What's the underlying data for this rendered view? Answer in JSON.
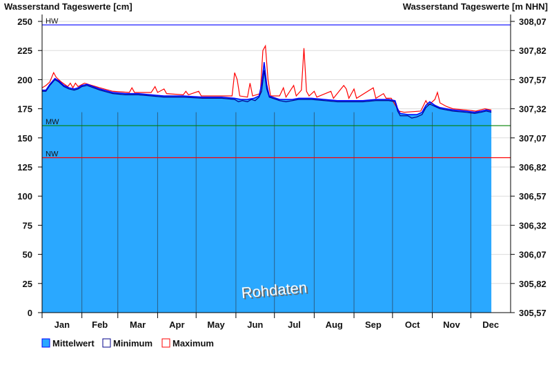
{
  "chart_data": {
    "type": "area",
    "title_left": "Wasserstand Tageswerte [cm]",
    "title_right": "Wasserstand Tageswerte [m NHN]",
    "xlabel": "",
    "ylabel": "Wasserstand Tageswerte [cm]",
    "ylim": [
      0,
      250
    ],
    "y_ticks": [
      "0",
      "25",
      "50",
      "75",
      "100",
      "125",
      "150",
      "175",
      "200",
      "225",
      "250"
    ],
    "y_ticks_right": [
      "305,57",
      "305,82",
      "306,07",
      "306,32",
      "306,57",
      "306,82",
      "307,07",
      "307,32",
      "307,57",
      "307,82",
      "308,07"
    ],
    "months": [
      "Jan",
      "Feb",
      "Mar",
      "Apr",
      "May",
      "Jun",
      "Jul",
      "Aug",
      "Sep",
      "Oct",
      "Nov",
      "Dec"
    ],
    "x_unit": "day of year",
    "grid": true,
    "reference_lines": [
      {
        "label": "HW",
        "value": 247,
        "color": "#0000ff"
      },
      {
        "label": "MW",
        "value": 160.5,
        "color": "#008000"
      },
      {
        "label": "NW",
        "value": 133,
        "color": "#ff0000"
      }
    ],
    "watermark": "Rohdaten",
    "legend_position": "bottom-left",
    "series": [
      {
        "name": "Mittelwert",
        "color": "#2aa8ff",
        "points": [
          [
            0,
            191
          ],
          [
            3,
            191
          ],
          [
            6,
            196
          ],
          [
            10,
            201
          ],
          [
            13,
            199
          ],
          [
            17,
            195
          ],
          [
            21,
            193
          ],
          [
            25,
            192
          ],
          [
            28,
            193
          ],
          [
            31,
            195
          ],
          [
            35,
            196
          ],
          [
            40,
            194
          ],
          [
            45,
            192
          ],
          [
            55,
            189
          ],
          [
            65,
            188
          ],
          [
            75,
            188
          ],
          [
            85,
            187
          ],
          [
            95,
            186
          ],
          [
            110,
            186
          ],
          [
            125,
            185
          ],
          [
            140,
            185
          ],
          [
            150,
            184
          ],
          [
            155,
            183
          ],
          [
            160,
            183
          ],
          [
            165,
            184
          ],
          [
            169,
            186
          ],
          [
            171,
            196
          ],
          [
            173,
            215
          ],
          [
            175,
            196
          ],
          [
            177,
            186
          ],
          [
            185,
            183
          ],
          [
            195,
            183
          ],
          [
            200,
            184
          ],
          [
            210,
            184
          ],
          [
            220,
            183
          ],
          [
            230,
            182
          ],
          [
            240,
            182
          ],
          [
            250,
            182
          ],
          [
            260,
            183
          ],
          [
            270,
            183
          ],
          [
            275,
            182
          ],
          [
            277,
            175
          ],
          [
            279,
            171
          ],
          [
            285,
            170
          ],
          [
            292,
            170
          ],
          [
            296,
            172
          ],
          [
            299,
            178
          ],
          [
            302,
            181
          ],
          [
            306,
            178
          ],
          [
            310,
            176
          ],
          [
            320,
            174
          ],
          [
            330,
            173
          ],
          [
            337,
            172
          ],
          [
            342,
            173
          ],
          [
            346,
            174
          ],
          [
            350,
            173
          ]
        ]
      },
      {
        "name": "Minimum",
        "color": "#00008b",
        "points": [
          [
            0,
            190
          ],
          [
            3,
            190
          ],
          [
            6,
            195
          ],
          [
            10,
            200
          ],
          [
            13,
            198
          ],
          [
            17,
            194
          ],
          [
            21,
            192
          ],
          [
            25,
            191
          ],
          [
            28,
            192
          ],
          [
            31,
            194
          ],
          [
            35,
            195
          ],
          [
            40,
            193
          ],
          [
            45,
            191
          ],
          [
            55,
            188
          ],
          [
            65,
            187
          ],
          [
            75,
            187
          ],
          [
            85,
            186
          ],
          [
            95,
            185
          ],
          [
            110,
            185
          ],
          [
            125,
            184
          ],
          [
            140,
            184
          ],
          [
            150,
            183
          ],
          [
            153,
            181
          ],
          [
            156,
            182
          ],
          [
            160,
            181
          ],
          [
            163,
            183
          ],
          [
            166,
            182
          ],
          [
            169,
            185
          ],
          [
            171,
            190
          ],
          [
            173,
            208
          ],
          [
            175,
            192
          ],
          [
            177,
            185
          ],
          [
            185,
            182
          ],
          [
            190,
            181
          ],
          [
            195,
            182
          ],
          [
            200,
            183
          ],
          [
            210,
            183
          ],
          [
            220,
            182
          ],
          [
            230,
            181
          ],
          [
            240,
            181
          ],
          [
            250,
            181
          ],
          [
            260,
            182
          ],
          [
            270,
            182
          ],
          [
            275,
            181
          ],
          [
            277,
            173
          ],
          [
            279,
            169
          ],
          [
            285,
            169
          ],
          [
            288,
            167
          ],
          [
            292,
            168
          ],
          [
            296,
            170
          ],
          [
            299,
            176
          ],
          [
            302,
            179
          ],
          [
            306,
            177
          ],
          [
            310,
            175
          ],
          [
            320,
            173
          ],
          [
            330,
            172
          ],
          [
            337,
            171
          ],
          [
            342,
            172
          ],
          [
            346,
            173
          ],
          [
            350,
            172
          ]
        ]
      },
      {
        "name": "Maximum",
        "color": "#ff0000",
        "points": [
          [
            0,
            193
          ],
          [
            3,
            195
          ],
          [
            6,
            198
          ],
          [
            9,
            206
          ],
          [
            11,
            202
          ],
          [
            15,
            198
          ],
          [
            20,
            194
          ],
          [
            22,
            197
          ],
          [
            24,
            193
          ],
          [
            26,
            197
          ],
          [
            28,
            194
          ],
          [
            33,
            197
          ],
          [
            36,
            196
          ],
          [
            45,
            193
          ],
          [
            55,
            190
          ],
          [
            68,
            189
          ],
          [
            70,
            193
          ],
          [
            72,
            189
          ],
          [
            85,
            189
          ],
          [
            88,
            194
          ],
          [
            90,
            189
          ],
          [
            95,
            192
          ],
          [
            97,
            188
          ],
          [
            110,
            187
          ],
          [
            112,
            190
          ],
          [
            114,
            187
          ],
          [
            122,
            190
          ],
          [
            124,
            186
          ],
          [
            140,
            186
          ],
          [
            148,
            186
          ],
          [
            150,
            206
          ],
          [
            152,
            200
          ],
          [
            154,
            186
          ],
          [
            160,
            185
          ],
          [
            162,
            197
          ],
          [
            164,
            186
          ],
          [
            170,
            188
          ],
          [
            172,
            225
          ],
          [
            174,
            229
          ],
          [
            176,
            200
          ],
          [
            178,
            186
          ],
          [
            185,
            186
          ],
          [
            188,
            193
          ],
          [
            190,
            185
          ],
          [
            196,
            195
          ],
          [
            198,
            186
          ],
          [
            202,
            191
          ],
          [
            204,
            227
          ],
          [
            206,
            190
          ],
          [
            208,
            186
          ],
          [
            212,
            190
          ],
          [
            214,
            185
          ],
          [
            225,
            190
          ],
          [
            227,
            184
          ],
          [
            235,
            195
          ],
          [
            237,
            192
          ],
          [
            239,
            184
          ],
          [
            243,
            192
          ],
          [
            245,
            184
          ],
          [
            258,
            193
          ],
          [
            260,
            184
          ],
          [
            266,
            188
          ],
          [
            268,
            184
          ],
          [
            272,
            184
          ],
          [
            278,
            173
          ],
          [
            282,
            172
          ],
          [
            295,
            173
          ],
          [
            299,
            182
          ],
          [
            301,
            178
          ],
          [
            306,
            183
          ],
          [
            308,
            189
          ],
          [
            310,
            180
          ],
          [
            315,
            177
          ],
          [
            320,
            175
          ],
          [
            330,
            174
          ],
          [
            338,
            173
          ],
          [
            345,
            175
          ],
          [
            350,
            174
          ]
        ]
      }
    ]
  }
}
